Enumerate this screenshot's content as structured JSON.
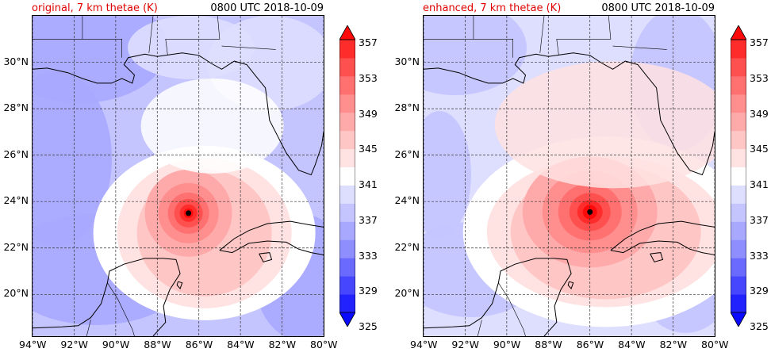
{
  "panels": [
    {
      "title": "original, 7 km thetae (K)",
      "time": "0800 UTC 2018-10-09",
      "center": [
        -86.5,
        23.5
      ]
    },
    {
      "title": "enhanced, 7 km thetae (K)",
      "time": "0800 UTC 2018-10-09",
      "center": [
        -86.0,
        23.55
      ]
    }
  ],
  "map": {
    "lon_range": [
      -94,
      -80
    ],
    "lat_range": [
      18.2,
      32.0
    ],
    "lon_ticks": [
      "94°W",
      "92°W",
      "90°W",
      "88°W",
      "86°W",
      "84°W",
      "82°W",
      "80°W"
    ],
    "lat_ticks": [
      "20°N",
      "22°N",
      "24°N",
      "26°N",
      "28°N",
      "30°N"
    ],
    "lon_tick_values": [
      -94,
      -92,
      -90,
      -88,
      -86,
      -84,
      -82,
      -80
    ],
    "lat_tick_values": [
      20,
      22,
      24,
      26,
      28,
      30
    ]
  },
  "colorbar": {
    "min": 325,
    "max": 359,
    "labels": [
      "357",
      "353",
      "349",
      "345",
      "341",
      "337",
      "333",
      "329",
      "325"
    ],
    "colors": [
      "#0a0aff",
      "#2222ff",
      "#4646ff",
      "#6a6aff",
      "#8e8eff",
      "#a8a8ff",
      "#c4c4ff",
      "#dedeff",
      "#ffffff",
      "#ffe2e2",
      "#ffc6c6",
      "#ffaaaa",
      "#ff8e8e",
      "#ff7070",
      "#ff5050",
      "#ff2c2c",
      "#ff0a0a"
    ]
  }
}
